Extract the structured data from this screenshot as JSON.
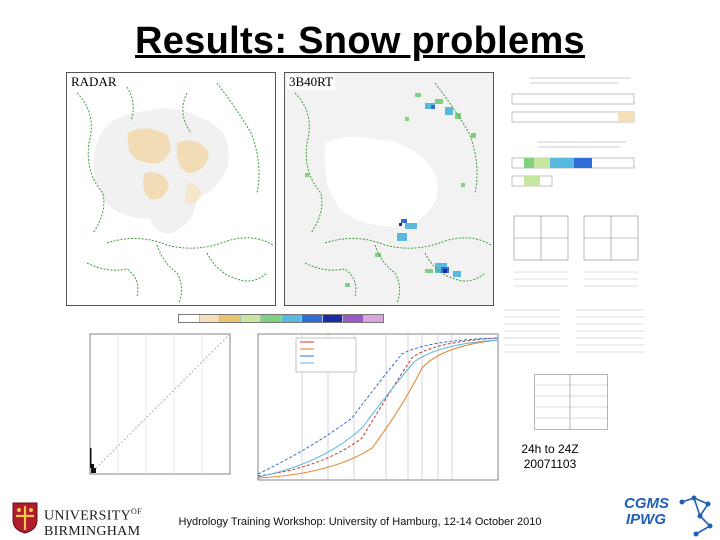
{
  "slide": {
    "title": "Results: Snow problems",
    "footer": "Hydrology Training Workshop: University of Hamburg, 12-14 October 2010"
  },
  "maps": {
    "left_label": "RADAR",
    "right_label": "3B40RT"
  },
  "figure": {
    "period_line1": "24h to 24Z",
    "period_line2": "20071103"
  },
  "logos": {
    "uob_line1": "UNIVERSITY",
    "uob_of": "OF",
    "uob_line2": "BIRMINGHAM",
    "cgms_line1": "CGMS",
    "cgms_line2": "IPWG"
  },
  "colors": {
    "title": "#000000",
    "snow_mask": "#f1f1f1",
    "radar_rain": "#f2dcb6",
    "coast": "#3f9d3f",
    "cgms_blue": "#1f5fb5",
    "uob_red": "#b01c2e",
    "legend_bar": [
      "#ffffff",
      "#f4dfb8",
      "#e8c46f",
      "#c8e6a0",
      "#7fd07f",
      "#59b8dd",
      "#2f6ed8",
      "#1d2aa8",
      "#9b59c8",
      "#d8a6d8"
    ]
  }
}
